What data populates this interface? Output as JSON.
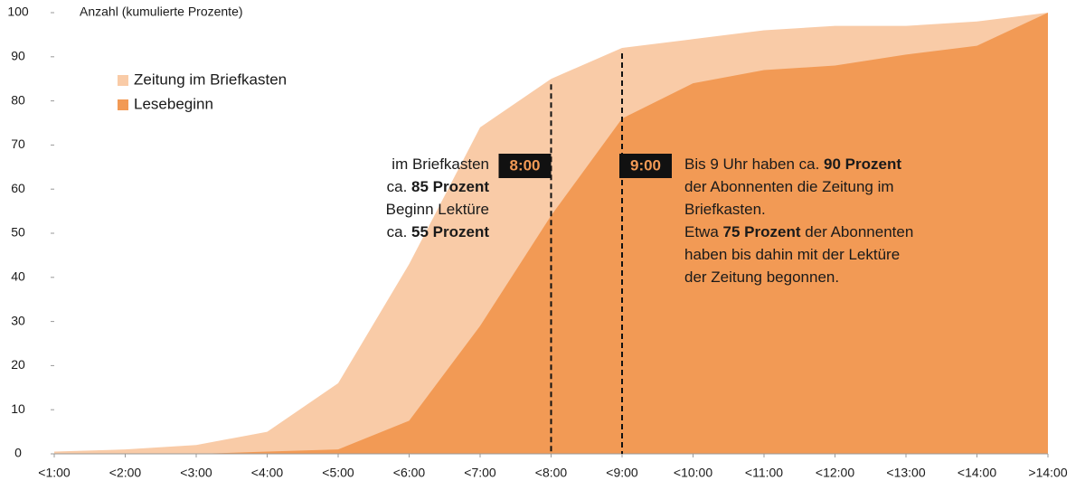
{
  "chart_data": {
    "type": "area",
    "y_axis_label": "Anzahl (kumulierte Prozente)",
    "categories": [
      "<1:00",
      "<2:00",
      "<3:00",
      "<4:00",
      "<5:00",
      "<6:00",
      "<7:00",
      "<8:00",
      "<9:00",
      "<10:00",
      "<11:00",
      "<12:00",
      "<13:00",
      "<14:00",
      ">14:00"
    ],
    "series": [
      {
        "name": "Zeitung im Briefkasten",
        "color": "#f9cba7",
        "values": [
          0.5,
          1,
          2,
          5,
          16,
          43,
          74,
          85,
          92,
          94,
          96,
          97,
          97,
          98,
          100
        ]
      },
      {
        "name": "Lesebeginn",
        "color": "#f29a55",
        "values": [
          0,
          0,
          0,
          0.5,
          1,
          7.5,
          29,
          54,
          76,
          84,
          87,
          88,
          90.5,
          92.5,
          100
        ]
      }
    ],
    "ylim": [
      0,
      100
    ],
    "yticks": [
      0,
      10,
      20,
      30,
      40,
      50,
      60,
      70,
      80,
      90,
      100
    ],
    "markers": [
      {
        "x": "<8:00",
        "label": "8:00"
      },
      {
        "x": "<9:00",
        "label": "9:00"
      }
    ],
    "annotations": [
      {
        "lines": [
          [
            {
              "text": "im Briefkasten",
              "bold": false
            }
          ],
          [
            {
              "text": "ca. ",
              "bold": false
            },
            {
              "text": "85 Prozent",
              "bold": true
            }
          ],
          [
            {
              "text": "Beginn Lektüre",
              "bold": false
            }
          ],
          [
            {
              "text": "ca. ",
              "bold": false
            },
            {
              "text": "55 Prozent",
              "bold": true
            }
          ]
        ]
      },
      {
        "lines": [
          [
            {
              "text": "Bis 9 Uhr haben ca. ",
              "bold": false
            },
            {
              "text": "90 Prozent",
              "bold": true
            }
          ],
          [
            {
              "text": "der Abonnenten die Zeitung im",
              "bold": false
            }
          ],
          [
            {
              "text": "Briefkasten.",
              "bold": false
            }
          ],
          [
            {
              "text": "Etwa ",
              "bold": false
            },
            {
              "text": "75 Prozent",
              "bold": true
            },
            {
              "text": " der Abonnenten",
              "bold": false
            }
          ],
          [
            {
              "text": "haben bis dahin mit der Lektüre",
              "bold": false
            }
          ],
          [
            {
              "text": "der Zeitung begonnen.",
              "bold": false
            }
          ]
        ]
      }
    ]
  }
}
